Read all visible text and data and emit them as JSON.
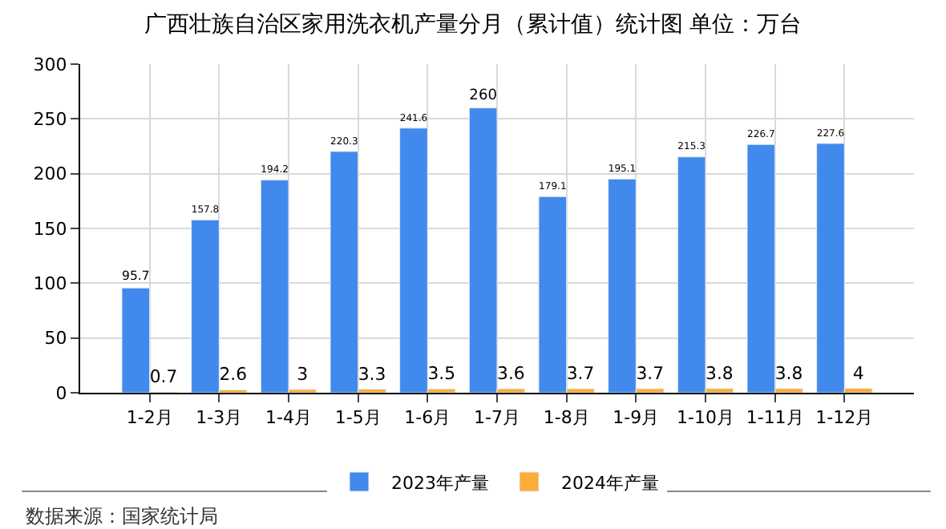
{
  "chart_data": {
    "type": "bar",
    "title": "广西壮族自治区家用洗衣机产量分月（累计值）统计图 单位：万台",
    "categories": [
      "1-2月",
      "1-3月",
      "1-4月",
      "1-5月",
      "1-6月",
      "1-7月",
      "1-8月",
      "1-9月",
      "1-10月",
      "1-11月",
      "1-12月"
    ],
    "series": [
      {
        "name": "2023年产量",
        "color": "#4189ec",
        "values": [
          95.7,
          157.8,
          194.2,
          220.3,
          241.6,
          260,
          179.1,
          195.1,
          215.3,
          226.7,
          227.6
        ]
      },
      {
        "name": "2024年产量",
        "color": "#fbac3b",
        "values": [
          0.7,
          2.6,
          3,
          3.3,
          3.5,
          3.6,
          3.7,
          3.7,
          3.8,
          3.8,
          4
        ]
      }
    ],
    "ylim": [
      0,
      300
    ],
    "yticks": [
      0,
      50,
      100,
      150,
      200,
      250,
      300
    ],
    "grid": true,
    "legend": "bottom",
    "data_labels": true,
    "annotations": [
      "数据来源：国家统计局"
    ]
  }
}
